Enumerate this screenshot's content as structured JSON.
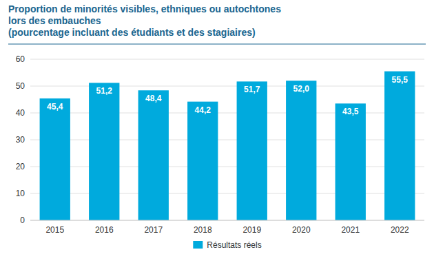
{
  "chart_data": {
    "type": "bar",
    "title": "Proportion de minorités visibles, ethniques ou autochtones\nlors des embauches\n(pourcentage incluant des étudiants et des stagiaires)",
    "categories": [
      "2015",
      "2016",
      "2017",
      "2018",
      "2019",
      "2020",
      "2021",
      "2022"
    ],
    "series": [
      {
        "name": "Résultats réels",
        "color": "#00aadd",
        "values": [
          45.4,
          51.2,
          48.4,
          44.2,
          51.7,
          52.0,
          43.5,
          55.5
        ],
        "value_labels": [
          "45,4",
          "51,2",
          "48,4",
          "44,2",
          "51,7",
          "52,0",
          "43,5",
          "55,5"
        ]
      }
    ],
    "ylim": [
      0,
      60
    ],
    "yticks": [
      0,
      10,
      20,
      30,
      40,
      50,
      60
    ],
    "grid": true,
    "data_labels": true,
    "legend": "bottom"
  }
}
